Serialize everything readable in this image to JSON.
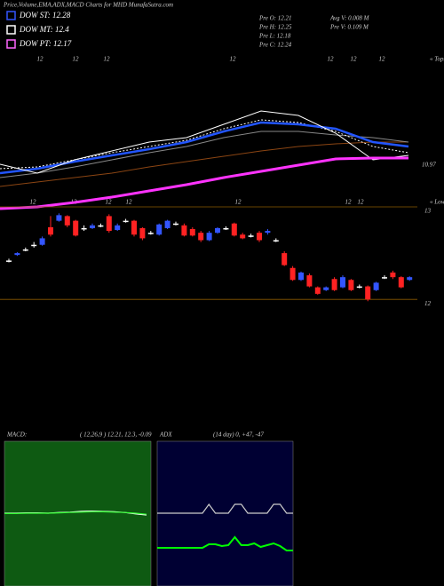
{
  "chart_data": [
    {
      "type": "line",
      "title": "Price,Volume,EMA,ADX,MACD Charts for MHD MunafaSutra.com",
      "legend": [
        "DOW ST: 12.28",
        "DOW MT: 12.4",
        "DOW PT: 12.17"
      ],
      "legend_colors": [
        "#3355ff",
        "#ffffff",
        "#ff66ff"
      ],
      "info": [
        "Pre  O: 12.21",
        "Pre  H: 12.25",
        "Pre  L: 12.18",
        "Pre  C: 12.24",
        "Avg V: 0.008  M",
        "Pre  V: 0.109 M"
      ],
      "top_labels": [
        "12",
        "12",
        "12",
        "12",
        "12",
        "12",
        "12"
      ],
      "top_tag": "« Tops",
      "low_labels": [
        "12",
        "12",
        "12",
        "12",
        "12",
        "12",
        "12"
      ],
      "low_tag": "« Lows",
      "price_label": "10.97",
      "x": [
        0,
        42,
        84,
        126,
        168,
        210,
        252,
        294,
        336,
        378,
        420,
        460
      ],
      "xlim": [
        0,
        480
      ],
      "ylim": [
        0,
        175
      ],
      "series": [
        {
          "color": "#8b4513",
          "values": [
            25,
            30,
            35,
            40,
            47,
            53,
            59,
            65,
            70,
            73,
            75,
            75
          ]
        },
        {
          "color": "#888888",
          "values": [
            35,
            40,
            47,
            55,
            63,
            70,
            80,
            87,
            87,
            83,
            80,
            75
          ]
        },
        {
          "color": "#ffffff",
          "dash": true,
          "values": [
            45,
            47,
            55,
            63,
            70,
            77,
            90,
            100,
            97,
            87,
            70,
            63
          ]
        },
        {
          "color": "#2255ff",
          "values": [
            40,
            45,
            53,
            60,
            67,
            75,
            87,
            97,
            95,
            90,
            75,
            70
          ]
        },
        {
          "color": "#ffffff",
          "values": [
            50,
            40,
            55,
            65,
            75,
            80,
            95,
            110,
            105,
            85,
            55,
            60
          ]
        },
        {
          "color": "#ff33ff",
          "values": [
            0,
            2,
            7,
            13,
            20,
            27,
            35,
            42,
            49,
            56,
            57,
            57
          ]
        }
      ]
    },
    {
      "type": "candlestick",
      "ylim": [
        11.8,
        13.0
      ],
      "yticks": [
        13,
        12
      ],
      "open": [
        12.42,
        12.48,
        12.54,
        12.59,
        12.59,
        12.78,
        12.85,
        12.9,
        12.85,
        12.77,
        12.77,
        12.8,
        12.9,
        12.75,
        12.85,
        12.85,
        12.77,
        12.72,
        12.7,
        12.77,
        12.82,
        12.8,
        12.76,
        12.72,
        12.64,
        12.72,
        12.77,
        12.82,
        12.7,
        12.69,
        12.72,
        12.72,
        12.64,
        12.5,
        12.34,
        12.21,
        12.26,
        12.13,
        12.1,
        12.22,
        12.13,
        12.21,
        12.14,
        12.14,
        12.1,
        12.24,
        12.29,
        12.24,
        12.21
      ],
      "close": [
        12.42,
        12.5,
        12.54,
        12.59,
        12.66,
        12.7,
        12.91,
        12.8,
        12.69,
        12.77,
        12.8,
        12.8,
        12.74,
        12.8,
        12.85,
        12.7,
        12.66,
        12.72,
        12.81,
        12.85,
        12.82,
        12.69,
        12.69,
        12.64,
        12.72,
        12.77,
        12.77,
        12.69,
        12.66,
        12.69,
        12.64,
        12.74,
        12.64,
        12.37,
        12.21,
        12.29,
        12.14,
        12.06,
        12.13,
        12.1,
        12.24,
        12.1,
        12.14,
        12.0,
        12.18,
        12.24,
        12.24,
        12.13,
        12.24
      ],
      "high": [
        12.44,
        12.51,
        12.56,
        12.62,
        12.68,
        12.9,
        12.93,
        12.91,
        12.86,
        12.8,
        12.82,
        12.82,
        12.92,
        12.82,
        12.87,
        12.86,
        12.78,
        12.74,
        12.82,
        12.86,
        12.84,
        12.82,
        12.78,
        12.74,
        12.74,
        12.78,
        12.79,
        12.83,
        12.72,
        12.71,
        12.74,
        12.76,
        12.66,
        12.52,
        12.36,
        12.3,
        12.28,
        12.14,
        12.14,
        12.24,
        12.26,
        12.22,
        12.16,
        12.15,
        12.19,
        12.26,
        12.31,
        12.25,
        12.25
      ],
      "low": [
        12.4,
        12.47,
        12.52,
        12.56,
        12.58,
        12.68,
        12.84,
        12.78,
        12.68,
        12.74,
        12.76,
        12.78,
        12.72,
        12.74,
        12.83,
        12.68,
        12.64,
        12.7,
        12.69,
        12.76,
        12.8,
        12.68,
        12.68,
        12.62,
        12.63,
        12.71,
        12.75,
        12.68,
        12.65,
        12.67,
        12.62,
        12.7,
        12.62,
        12.36,
        12.2,
        12.2,
        12.13,
        12.05,
        12.09,
        12.09,
        12.12,
        12.09,
        12.12,
        11.98,
        12.09,
        12.22,
        12.22,
        12.12,
        12.2
      ]
    },
    {
      "type": "line",
      "title": "MACD:",
      "subtitle": "( 12,26,9 ) 12.21, 12.3, -0.09",
      "background": "#0e5a12",
      "ylim": [
        -1,
        1
      ],
      "series": [
        {
          "color": "#ffffff",
          "values": [
            0,
            0,
            0.01,
            0.01,
            0,
            0.02,
            0.03,
            0.05,
            0.06,
            0.05,
            0.04,
            0.02,
            -0.02,
            -0.05
          ]
        },
        {
          "color": "#33ff33",
          "values": [
            -0.01,
            -0.01,
            0,
            0,
            0,
            0.01,
            0.02,
            0.03,
            0.04,
            0.04,
            0.03,
            0.02,
            0,
            -0.03
          ]
        }
      ]
    },
    {
      "type": "line",
      "title": "ADX",
      "subtitle": "(14 day) 0, +47, -47",
      "background": "#000033",
      "ylim": [
        0,
        100
      ],
      "series": [
        {
          "color": "#cccccc",
          "values": [
            60,
            60,
            60,
            60,
            60,
            60,
            60,
            60,
            70,
            60,
            60,
            60,
            70,
            70,
            60,
            60,
            60,
            60,
            70,
            70,
            60,
            60
          ]
        },
        {
          "color": "#00ff00",
          "values": [
            21,
            21,
            21,
            21,
            21,
            21,
            21,
            21,
            25,
            25,
            23,
            24,
            33,
            24,
            24,
            26,
            22,
            24,
            26,
            23,
            18,
            18
          ]
        }
      ]
    }
  ]
}
